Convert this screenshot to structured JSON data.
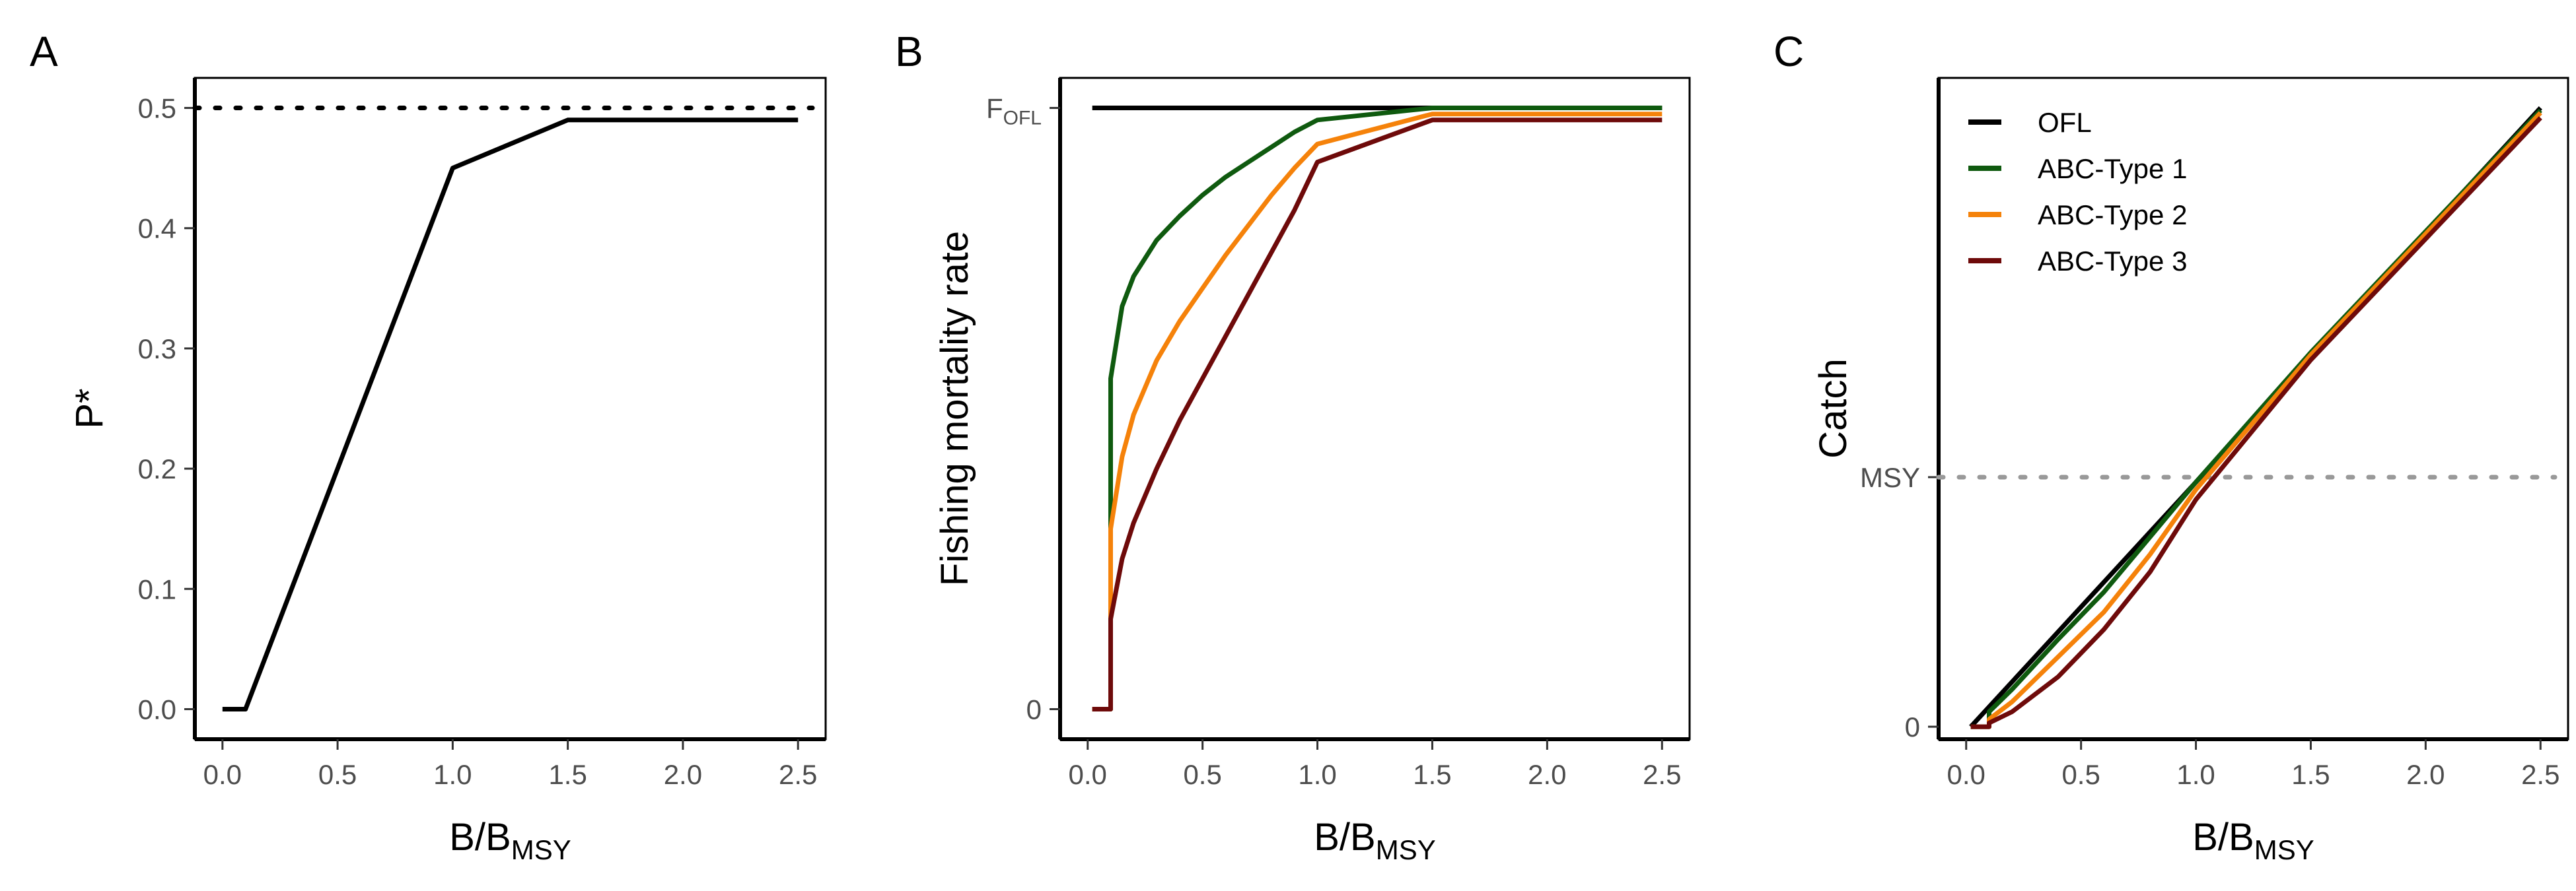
{
  "colors": {
    "OFL": "#000000",
    "ABC-Type 1": "#0f5a0f",
    "ABC-Type 2": "#f5820a",
    "ABC-Type 3": "#6e0a0a",
    "reference_line": "#999999"
  },
  "chart_data": [
    {
      "panel_label": "A",
      "type": "line",
      "xlabel_main": "B/B",
      "xlabel_sub": "MSY",
      "ylabel": "P*",
      "xlim": [
        -0.12,
        2.62
      ],
      "ylim": [
        -0.025,
        0.525
      ],
      "xticks": [
        0.0,
        0.5,
        1.0,
        1.5,
        2.0,
        2.5
      ],
      "xtick_labels": [
        "0.0",
        "0.5",
        "1.0",
        "1.5",
        "2.0",
        "2.5"
      ],
      "yticks": [
        0.0,
        0.1,
        0.2,
        0.3,
        0.4,
        0.5
      ],
      "ytick_labels": [
        "0.0",
        "0.1",
        "0.2",
        "0.3",
        "0.4",
        "0.5"
      ],
      "reference_lines": [
        {
          "y": 0.5,
          "style": "dotted",
          "color": "#000000"
        }
      ],
      "series": [
        {
          "color": "#000000",
          "x": [
            0.0,
            0.1,
            1.0,
            1.5,
            2.5
          ],
          "y": [
            0.0,
            0.0,
            0.45,
            0.49,
            0.49
          ]
        }
      ]
    },
    {
      "panel_label": "B",
      "type": "line",
      "xlabel_main": "B/B",
      "xlabel_sub": "MSY",
      "ylabel": "Fishing mortality rate",
      "xlim": [
        -0.12,
        2.62
      ],
      "ylim": [
        -0.05,
        1.05
      ],
      "xticks": [
        0.0,
        0.5,
        1.0,
        1.5,
        2.0,
        2.5
      ],
      "xtick_labels": [
        "0.0",
        "0.5",
        "1.0",
        "1.5",
        "2.0",
        "2.5"
      ],
      "yticks": [
        0,
        1
      ],
      "ytick_labels": [
        "0",
        "F"
      ],
      "ytick_subs": [
        "",
        "OFL"
      ],
      "series": [
        {
          "name": "OFL",
          "color": "#000000",
          "x": [
            0.02,
            2.5
          ],
          "y": [
            1.0,
            1.0
          ]
        },
        {
          "name": "ABC-Type 1",
          "color": "#0f5a0f",
          "x": [
            0.02,
            0.1,
            0.1,
            0.15,
            0.2,
            0.3,
            0.4,
            0.5,
            0.6,
            0.7,
            0.8,
            0.9,
            1.0,
            1.5,
            2.5
          ],
          "y": [
            0.0,
            0.0,
            0.55,
            0.67,
            0.72,
            0.78,
            0.82,
            0.855,
            0.885,
            0.91,
            0.935,
            0.96,
            0.98,
            1.0,
            1.0
          ]
        },
        {
          "name": "ABC-Type 2",
          "color": "#f5820a",
          "x": [
            0.02,
            0.1,
            0.1,
            0.15,
            0.2,
            0.3,
            0.4,
            0.5,
            0.6,
            0.7,
            0.8,
            0.9,
            1.0,
            1.5,
            2.5
          ],
          "y": [
            0.0,
            0.0,
            0.3,
            0.42,
            0.49,
            0.58,
            0.645,
            0.7,
            0.755,
            0.805,
            0.855,
            0.9,
            0.94,
            0.99,
            0.99
          ]
        },
        {
          "name": "ABC-Type 3",
          "color": "#6e0a0a",
          "x": [
            0.02,
            0.1,
            0.1,
            0.15,
            0.2,
            0.3,
            0.4,
            0.5,
            0.6,
            0.7,
            0.8,
            0.9,
            1.0,
            1.5,
            2.5
          ],
          "y": [
            0.0,
            0.0,
            0.15,
            0.25,
            0.31,
            0.4,
            0.48,
            0.55,
            0.62,
            0.69,
            0.76,
            0.83,
            0.91,
            0.98,
            0.98
          ]
        }
      ]
    },
    {
      "panel_label": "C",
      "type": "line",
      "xlabel_main": "B/B",
      "xlabel_sub": "MSY",
      "ylabel": "Catch",
      "xlim": [
        -0.12,
        2.62
      ],
      "ylim": [
        -0.05,
        2.6
      ],
      "xticks": [
        0.0,
        0.5,
        1.0,
        1.5,
        2.0,
        2.5
      ],
      "xtick_labels": [
        "0.0",
        "0.5",
        "1.0",
        "1.5",
        "2.0",
        "2.5"
      ],
      "yticks": [
        0,
        1
      ],
      "ytick_labels": [
        "0",
        "MSY"
      ],
      "reference_lines": [
        {
          "y": 1.0,
          "style": "dotted",
          "color": "#999999"
        }
      ],
      "legend_position": "top-left",
      "series": [
        {
          "name": "OFL",
          "color": "#000000",
          "x": [
            0.02,
            2.5
          ],
          "y": [
            0.0,
            2.48
          ]
        },
        {
          "name": "ABC-Type 1",
          "color": "#0f5a0f",
          "x": [
            0.02,
            0.1,
            0.1,
            0.2,
            0.4,
            0.6,
            0.8,
            1.0,
            1.5,
            2.5
          ],
          "y": [
            0.0,
            0.0,
            0.06,
            0.15,
            0.35,
            0.54,
            0.76,
            0.98,
            1.5,
            2.47
          ]
        },
        {
          "name": "ABC-Type 2",
          "color": "#f5820a",
          "x": [
            0.02,
            0.1,
            0.1,
            0.2,
            0.4,
            0.6,
            0.8,
            1.0,
            1.5,
            2.5
          ],
          "y": [
            0.0,
            0.0,
            0.03,
            0.1,
            0.28,
            0.46,
            0.69,
            0.95,
            1.49,
            2.46
          ]
        },
        {
          "name": "ABC-Type 3",
          "color": "#6e0a0a",
          "x": [
            0.02,
            0.1,
            0.1,
            0.2,
            0.4,
            0.6,
            0.8,
            1.0,
            1.5,
            2.5
          ],
          "y": [
            0.0,
            0.0,
            0.015,
            0.06,
            0.2,
            0.39,
            0.62,
            0.91,
            1.47,
            2.44
          ]
        }
      ]
    }
  ]
}
